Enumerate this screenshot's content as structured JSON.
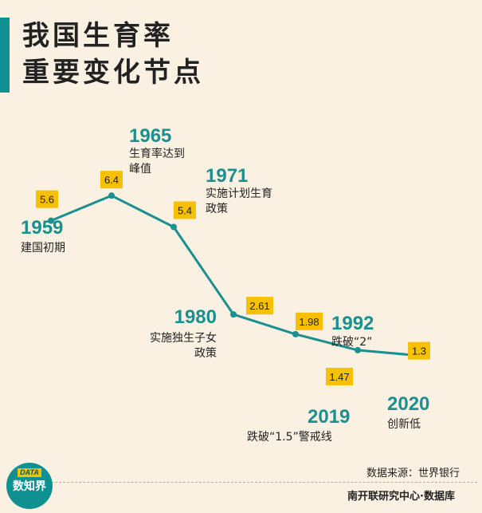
{
  "title": {
    "line1": "我国生育率",
    "line2": "重要变化节点"
  },
  "chart_data": {
    "type": "line",
    "title": "我国生育率重要变化节点",
    "series": [
      {
        "values": [
          5.6,
          6.4,
          5.4,
          2.61,
          1.98,
          1.47,
          1.3
        ]
      }
    ],
    "points": [
      {
        "x": "1959",
        "y": 5.6,
        "label": "5.6",
        "year": "1959",
        "desc": [
          "建国初期"
        ]
      },
      {
        "x": "1965",
        "y": 6.4,
        "label": "6.4",
        "year": "1965",
        "desc": [
          "生育率达到",
          "峰值"
        ]
      },
      {
        "x": "1971",
        "y": 5.4,
        "label": "5.4",
        "year": "1971",
        "desc": [
          "实施计划生育",
          "政策"
        ]
      },
      {
        "x": "1980",
        "y": 2.61,
        "label": "2.61",
        "year": "1980",
        "desc": [
          "实施独生子女",
          "政策"
        ]
      },
      {
        "x": "1992",
        "y": 1.98,
        "label": "1.98",
        "year": "1992",
        "desc": [
          "跌破“2”"
        ]
      },
      {
        "x": "2019",
        "y": 1.47,
        "label": "1.47",
        "year": "2019",
        "desc": [
          "跌破“1.5”警戒线"
        ]
      },
      {
        "x": "2020",
        "y": 1.3,
        "label": "1.3",
        "year": "2020",
        "desc": [
          "创新低"
        ]
      }
    ],
    "colors": {
      "line": "#1a9090",
      "label_bg": "#f7c000",
      "year": "#1a9090"
    }
  },
  "footer": {
    "source": "数据来源：世界银行",
    "credit": "南开联研究中心·数据库"
  },
  "logo": {
    "tag": "DATA",
    "name": "数知界"
  }
}
